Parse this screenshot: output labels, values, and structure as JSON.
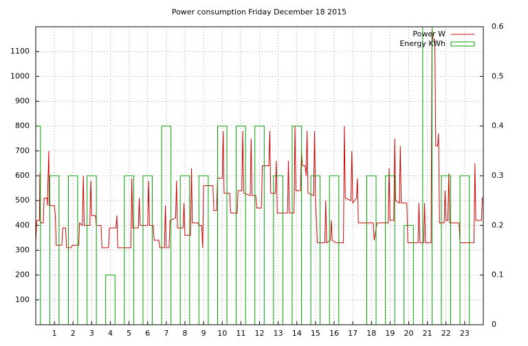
{
  "chart_data": {
    "type": "line",
    "title": "Power consumption Friday December 18 2015",
    "xlim": [
      0,
      24
    ],
    "xticks": [
      1,
      2,
      3,
      4,
      5,
      6,
      7,
      8,
      9,
      10,
      11,
      12,
      13,
      14,
      15,
      16,
      17,
      18,
      19,
      20,
      21,
      22,
      23
    ],
    "ylim": [
      0,
      1200
    ],
    "yticks": [
      100,
      200,
      300,
      400,
      500,
      600,
      700,
      800,
      900,
      1000,
      1100
    ],
    "y2lim": [
      0,
      0.6
    ],
    "y2ticks": [
      0,
      0.1,
      0.2,
      0.3,
      0.4,
      0.5,
      0.6
    ],
    "grid": true,
    "legend": "top-right",
    "series": [
      {
        "name": "Power W",
        "color": "#cc0000",
        "style": "lines",
        "x": [
          0,
          0.05,
          0.2,
          0.22,
          0.25,
          0.4,
          0.45,
          0.6,
          0.62,
          0.7,
          0.72,
          1.0,
          1.05,
          1.1,
          1.4,
          1.45,
          1.6,
          1.65,
          1.9,
          1.95,
          2.3,
          2.35,
          2.5,
          2.55,
          2.6,
          2.9,
          2.95,
          3.0,
          3.2,
          3.25,
          3.5,
          3.55,
          3.9,
          3.95,
          4.3,
          4.35,
          4.4,
          5.1,
          5.15,
          5.2,
          5.5,
          5.55,
          5.6,
          6.0,
          6.05,
          6.1,
          6.3,
          6.35,
          6.6,
          6.65,
          6.9,
          6.95,
          7.0,
          7.15,
          7.2,
          7.5,
          7.55,
          7.6,
          7.9,
          7.95,
          8.0,
          8.3,
          8.35,
          8.4,
          8.7,
          8.75,
          8.9,
          8.95,
          9.0,
          9.5,
          9.55,
          9.7,
          9.75,
          10.0,
          10.05,
          10.1,
          10.4,
          10.45,
          10.8,
          10.85,
          11.05,
          11.1,
          11.15,
          11.5,
          11.55,
          11.6,
          11.8,
          11.85,
          12.1,
          12.15,
          12.5,
          12.55,
          12.6,
          12.85,
          12.9,
          12.95,
          13.5,
          13.55,
          13.6,
          13.85,
          13.9,
          13.95,
          14.2,
          14.25,
          14.3,
          14.45,
          14.5,
          14.55,
          14.6,
          14.9,
          14.95,
          15.0,
          15.1,
          15.5,
          15.55,
          15.6,
          15.8,
          15.85,
          15.9,
          16.1,
          16.5,
          16.55,
          16.6,
          16.9,
          16.95,
          17.0,
          17.2,
          17.25,
          17.3,
          18.1,
          18.15,
          18.3,
          18.9,
          18.95,
          19.0,
          19.2,
          19.25,
          19.3,
          19.5,
          19.55,
          19.6,
          19.9,
          19.95,
          20.5,
          20.55,
          20.6,
          20.8,
          20.85,
          20.9,
          21.2,
          21.25,
          21.3,
          21.4,
          21.45,
          21.55,
          21.6,
          21.65,
          21.9,
          21.95,
          22.0,
          22.1,
          22.15,
          22.2,
          22.7,
          22.75,
          23.2,
          23.5,
          23.55,
          23.6,
          23.9,
          23.95,
          24.0
        ],
        "values": [
          330,
          420,
          420,
          610,
          410,
          410,
          510,
          510,
          480,
          700,
          480,
          480,
          440,
          320,
          320,
          390,
          390,
          310,
          310,
          320,
          320,
          410,
          400,
          600,
          400,
          400,
          580,
          440,
          440,
          400,
          400,
          310,
          310,
          390,
          390,
          440,
          310,
          310,
          590,
          390,
          390,
          510,
          400,
          400,
          580,
          400,
          400,
          340,
          340,
          310,
          310,
          480,
          310,
          310,
          420,
          430,
          580,
          390,
          390,
          490,
          360,
          360,
          630,
          410,
          410,
          400,
          400,
          310,
          560,
          560,
          460,
          460,
          590,
          590,
          780,
          530,
          530,
          450,
          450,
          540,
          540,
          780,
          530,
          520,
          750,
          520,
          520,
          470,
          470,
          640,
          640,
          780,
          530,
          530,
          660,
          450,
          450,
          660,
          450,
          450,
          800,
          540,
          540,
          700,
          640,
          640,
          600,
          780,
          530,
          520,
          780,
          510,
          330,
          330,
          500,
          330,
          340,
          420,
          340,
          330,
          330,
          800,
          510,
          500,
          700,
          490,
          510,
          590,
          410,
          410,
          340,
          410,
          410,
          630,
          420,
          420,
          750,
          500,
          490,
          720,
          490,
          490,
          330,
          330,
          490,
          330,
          330,
          490,
          330,
          330,
          1190,
          1150,
          1150,
          720,
          720,
          770,
          410,
          410,
          540,
          420,
          420,
          610,
          410,
          410,
          330,
          330,
          330,
          650,
          420,
          420,
          510,
          510
        ]
      },
      {
        "name": "Energy KWh",
        "color": "#00a000",
        "style": "boxes",
        "axis": "y2",
        "x": [
          0,
          1,
          2,
          3,
          4,
          5,
          6,
          7,
          8,
          9,
          10,
          11,
          12,
          13,
          14,
          15,
          16,
          17,
          18,
          19,
          20,
          21,
          22,
          23
        ],
        "values": [
          0.4,
          0.3,
          0.3,
          0.3,
          0.1,
          0.3,
          0.3,
          0.4,
          0.3,
          0.3,
          0.4,
          0.4,
          0.4,
          0.3,
          0.4,
          0.3,
          0.3,
          0,
          0.3,
          0.3,
          0.2,
          0.6,
          0.3,
          0.3
        ]
      }
    ]
  }
}
